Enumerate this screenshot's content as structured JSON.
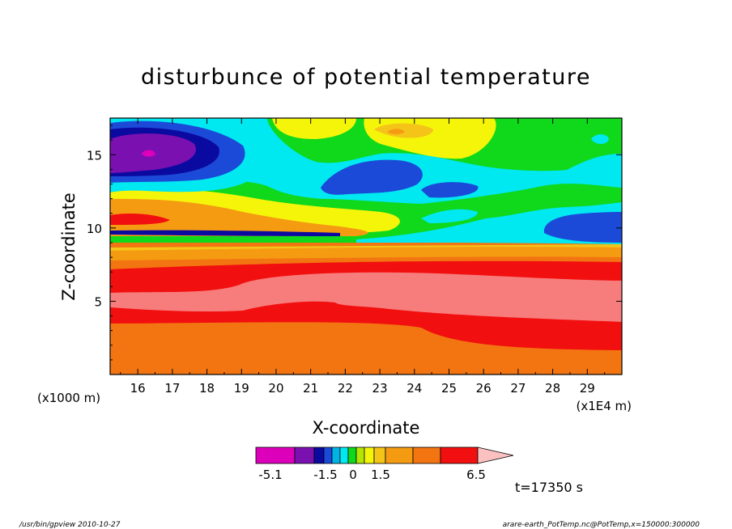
{
  "chart_data": {
    "type": "heatmap",
    "title": "disturbunce of potential temperature",
    "xlabel": "X-coordinate",
    "ylabel": "Z-coordinate",
    "x_unit_note": "(x1E4 m)",
    "y_unit_note": "(x1000 m)",
    "xlim": [
      15.2,
      30
    ],
    "ylim": [
      0,
      17.5
    ],
    "x_ticks": [
      "16",
      "17",
      "18",
      "19",
      "20",
      "21",
      "22",
      "23",
      "24",
      "25",
      "26",
      "27",
      "28",
      "29"
    ],
    "y_ticks": [
      "5",
      "10",
      "15"
    ],
    "grid": false,
    "colorbar": {
      "tick_labels": [
        "-5.1",
        "-1.5",
        "0",
        "1.5",
        "6.5"
      ],
      "colors": [
        "#dd00bb",
        "#7a10b0",
        "#0a0aa0",
        "#1c4ad8",
        "#00b4e6",
        "#00e8f0",
        "#10d81a",
        "#b4e600",
        "#f5f50a",
        "#f5c418",
        "#f59b12",
        "#f27511",
        "#f20f0f",
        "#f77c7c",
        "#fbc0c0"
      ]
    },
    "time_label": "t=17350 s"
  },
  "footer": {
    "left": "/usr/bin/gpview   2010-10-27",
    "right": "arare-earth_PotTemp.nc@PotTemp,x=150000:300000"
  }
}
